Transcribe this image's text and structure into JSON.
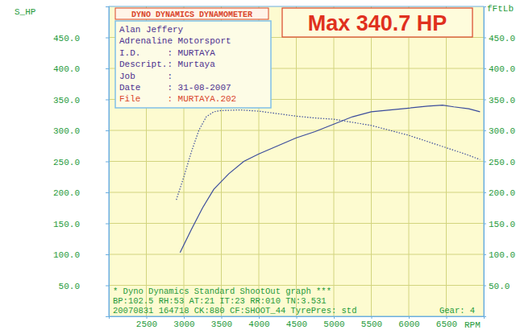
{
  "chart_data": {
    "type": "line",
    "title": "Max 340.7 HP",
    "header": "DYNO DYNAMICS DYNAMOMETER",
    "info_lines": [
      "Alan Jeffery",
      "Adrenaline Motorsport",
      "I.D.     : MURTAYA",
      "Descript.: Murtaya",
      "Job      :",
      "Date     : 31-08-2007",
      "File     : MURTAYA.202"
    ],
    "footer": [
      "* Dyno Dynamics Standard ShootOut graph ***",
      "BP:102.5 RH:53 AT:21 IT:23 RR:010 TN:3.531",
      "20070831 164718 CK:880 CF:SHOOT_44 TyrePres: std"
    ],
    "gear_label": "Gear: 4",
    "y_label": "S_HP",
    "y2_label": "fFtLb",
    "x_label": "RPM",
    "xlim": [
      2000,
      7000
    ],
    "xticks": [
      2500,
      3000,
      3500,
      4000,
      4500,
      5000,
      5500,
      6000,
      6500
    ],
    "ylim": [
      0,
      500
    ],
    "yticks": [
      {
        "value": 50,
        "label": "50.0"
      },
      {
        "value": 100,
        "label": "100.0"
      },
      {
        "value": 150,
        "label": "150.0"
      },
      {
        "value": 200,
        "label": "200.0"
      },
      {
        "value": 250,
        "label": "250.0"
      },
      {
        "value": 300,
        "label": "300.0"
      },
      {
        "value": 350,
        "label": "350.0"
      },
      {
        "value": 400,
        "label": "400.0"
      },
      {
        "value": 450,
        "label": "450.0"
      }
    ],
    "y2lim": [
      0,
      500
    ],
    "y2ticks": [
      {
        "value": 50,
        "label": "50.0"
      },
      {
        "value": 100,
        "label": "100.0"
      },
      {
        "value": 150,
        "label": "150.0"
      },
      {
        "value": 200,
        "label": "200.0"
      },
      {
        "value": 250,
        "label": "250.0"
      },
      {
        "value": 300,
        "label": "300.0"
      },
      {
        "value": 350,
        "label": "350.0"
      },
      {
        "value": 400,
        "label": "400.0"
      },
      {
        "value": 450,
        "label": "450.0"
      }
    ],
    "grid": true,
    "series": [
      {
        "color": "#3b4c9c",
        "line_style": "solid",
        "x": [
          2950,
          3100,
          3250,
          3400,
          3600,
          3800,
          4000,
          4250,
          4500,
          4750,
          5000,
          5250,
          5500,
          5750,
          6000,
          6250,
          6450,
          6600,
          6800,
          6950
        ],
        "values": [
          103,
          140,
          175,
          205,
          230,
          250,
          262,
          275,
          288,
          298,
          310,
          322,
          330,
          333,
          336,
          339,
          340.7,
          338,
          335,
          330
        ]
      },
      {
        "color": "#3b4c9c",
        "line_style": "dotted",
        "axis": "y2",
        "x": [
          2900,
          3000,
          3100,
          3200,
          3300,
          3400,
          3500,
          3750,
          4000,
          4250,
          4500,
          4750,
          5000,
          5250,
          5500,
          5750,
          6000,
          6250,
          6500,
          6750,
          6950
        ],
        "values": [
          188,
          225,
          265,
          300,
          322,
          330,
          332,
          333,
          331,
          327,
          323,
          320,
          318,
          313,
          308,
          300,
          292,
          282,
          272,
          262,
          253
        ]
      }
    ]
  }
}
